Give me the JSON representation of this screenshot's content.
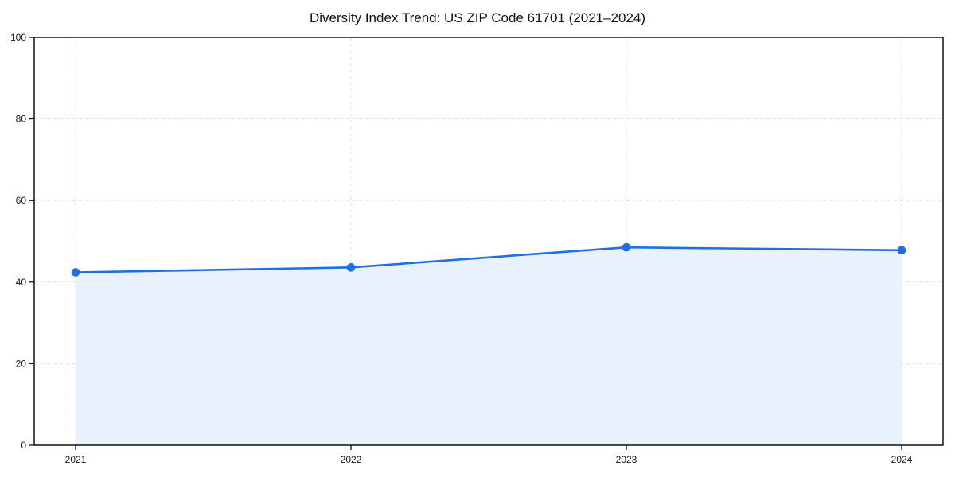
{
  "title": "Diversity Index Trend: US ZIP Code 61701 (2021–2024)",
  "colors": {
    "line": "#1f6fe0",
    "marker": "#1f6fe0",
    "area_fill": "#e9f1fd",
    "grid": "#e0e0e0",
    "spine": "#000000",
    "tick_text": "#1a1a1a",
    "background": "#ffffff",
    "title_text": "#111111"
  },
  "chart_data": {
    "type": "line",
    "title": "Diversity Index Trend: US ZIP Code 61701 (2021–2024)",
    "x": [
      2021,
      2022,
      2023,
      2024
    ],
    "xticklabels": [
      "2021",
      "2022",
      "2023",
      "2024"
    ],
    "series": [
      {
        "name": "Diversity Index",
        "values": [
          42.4,
          43.6,
          48.5,
          47.8
        ]
      }
    ],
    "xlabel": "",
    "ylabel": "",
    "ylim": [
      0,
      100
    ],
    "yticks": [
      0,
      20,
      40,
      60,
      80,
      100
    ],
    "grid": true,
    "grid_style": "dashed",
    "area_fill": true,
    "marker": "circle",
    "legend_position": "none"
  }
}
